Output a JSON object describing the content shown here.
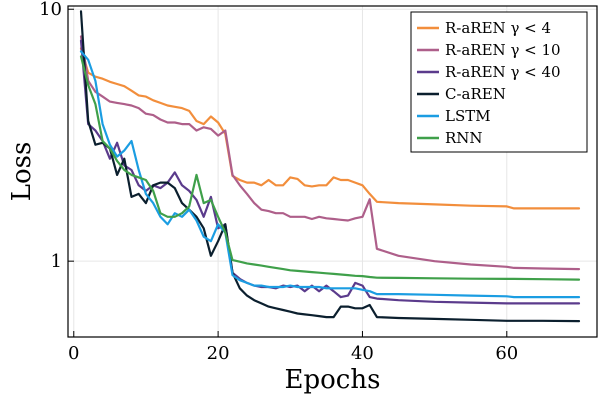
{
  "chart_data": {
    "type": "line",
    "title": "",
    "xlabel": "Epochs",
    "ylabel": "Loss",
    "xscale": "linear",
    "yscale": "log10",
    "xlim": [
      -0.8,
      72.5
    ],
    "ylim": [
      0.5,
      10.3
    ],
    "xticks": [
      0,
      20,
      40,
      60
    ],
    "xtick_labels": [
      "0",
      "20",
      "40",
      "60"
    ],
    "yticks": [
      1,
      10
    ],
    "ytick_labels": [
      "1",
      "10"
    ],
    "grid": true,
    "legend_position": "top-right",
    "series": [
      {
        "name": "R-aREN γ < 4",
        "color": "#f28e3c",
        "x": [
          1,
          2,
          3,
          4,
          5,
          6,
          7,
          8,
          9,
          10,
          11,
          12,
          13,
          14,
          15,
          16,
          17,
          18,
          19,
          20,
          21,
          22,
          23,
          24,
          25,
          26,
          27,
          28,
          29,
          30,
          31,
          32,
          33,
          34,
          35,
          36,
          37,
          38,
          39,
          40,
          41,
          42,
          45,
          50,
          55,
          60,
          61,
          65,
          70
        ],
        "y": [
          7.0,
          5.6,
          5.4,
          5.3,
          5.15,
          5.05,
          4.95,
          4.75,
          4.55,
          4.5,
          4.35,
          4.25,
          4.15,
          4.1,
          4.05,
          3.95,
          3.6,
          3.5,
          3.75,
          3.55,
          3.2,
          2.18,
          2.1,
          2.05,
          2.05,
          2.0,
          2.1,
          2.0,
          2.0,
          2.15,
          2.12,
          2.0,
          1.98,
          2.0,
          2.0,
          2.15,
          2.1,
          2.1,
          2.05,
          2.0,
          1.85,
          1.72,
          1.7,
          1.68,
          1.66,
          1.65,
          1.62,
          1.62,
          1.62
        ]
      },
      {
        "name": "R-aREN γ < 10",
        "color": "#ae5f8a",
        "x": [
          1,
          2,
          3,
          4,
          5,
          6,
          7,
          8,
          9,
          10,
          11,
          12,
          13,
          14,
          15,
          16,
          17,
          18,
          19,
          20,
          21,
          22,
          23,
          24,
          25,
          26,
          27,
          28,
          29,
          30,
          31,
          32,
          33,
          34,
          35,
          36,
          37,
          38,
          39,
          40,
          41,
          42,
          45,
          50,
          55,
          60,
          61,
          65,
          70
        ],
        "y": [
          7.8,
          5.2,
          4.7,
          4.5,
          4.3,
          4.25,
          4.2,
          4.15,
          4.05,
          3.85,
          3.8,
          3.65,
          3.55,
          3.55,
          3.5,
          3.5,
          3.3,
          3.4,
          3.35,
          3.15,
          3.3,
          2.2,
          2.0,
          1.85,
          1.7,
          1.6,
          1.58,
          1.55,
          1.55,
          1.5,
          1.5,
          1.5,
          1.47,
          1.5,
          1.48,
          1.47,
          1.46,
          1.45,
          1.48,
          1.5,
          1.76,
          1.12,
          1.05,
          1.0,
          0.97,
          0.95,
          0.94,
          0.935,
          0.93
        ]
      },
      {
        "name": "R-aREN γ < 40",
        "color": "#5b3b8c",
        "x": [
          1,
          2,
          3,
          4,
          5,
          6,
          7,
          8,
          9,
          10,
          11,
          12,
          13,
          14,
          15,
          16,
          17,
          18,
          19,
          20,
          21,
          22,
          23,
          24,
          25,
          26,
          27,
          28,
          29,
          30,
          31,
          32,
          33,
          34,
          35,
          36,
          37,
          38,
          39,
          40,
          41,
          42,
          45,
          50,
          55,
          60,
          61,
          65,
          70
        ],
        "y": [
          7.5,
          3.5,
          3.3,
          3.0,
          2.55,
          2.95,
          2.4,
          2.3,
          2.0,
          1.9,
          2.0,
          1.95,
          2.05,
          2.25,
          2.0,
          1.9,
          1.75,
          1.5,
          1.8,
          1.35,
          1.4,
          0.9,
          0.85,
          0.82,
          0.8,
          0.79,
          0.79,
          0.78,
          0.8,
          0.79,
          0.8,
          0.76,
          0.8,
          0.76,
          0.8,
          0.76,
          0.72,
          0.73,
          0.82,
          0.8,
          0.72,
          0.71,
          0.7,
          0.69,
          0.685,
          0.68,
          0.68,
          0.68,
          0.68
        ]
      },
      {
        "name": "C-aREN",
        "color": "#0b1f2e",
        "x": [
          1,
          2,
          3,
          4,
          5,
          6,
          7,
          8,
          9,
          10,
          11,
          12,
          13,
          14,
          15,
          16,
          17,
          18,
          19,
          20,
          21,
          22,
          23,
          24,
          25,
          26,
          27,
          28,
          29,
          30,
          31,
          32,
          33,
          34,
          35,
          36,
          37,
          38,
          39,
          40,
          41,
          42,
          45,
          50,
          55,
          60,
          61,
          65,
          70
        ],
        "y": [
          9.8,
          3.6,
          2.9,
          2.95,
          2.8,
          2.2,
          2.55,
          1.8,
          1.85,
          1.7,
          2.0,
          2.05,
          2.05,
          1.95,
          1.7,
          1.6,
          1.5,
          1.35,
          1.05,
          1.2,
          1.4,
          0.9,
          0.78,
          0.73,
          0.7,
          0.68,
          0.66,
          0.65,
          0.64,
          0.63,
          0.62,
          0.615,
          0.61,
          0.605,
          0.6,
          0.6,
          0.66,
          0.66,
          0.65,
          0.65,
          0.67,
          0.6,
          0.595,
          0.59,
          0.585,
          0.58,
          0.58,
          0.58,
          0.578
        ]
      },
      {
        "name": "LSTM",
        "color": "#1b9de2",
        "x": [
          1,
          2,
          3,
          4,
          5,
          6,
          7,
          8,
          9,
          10,
          11,
          12,
          13,
          14,
          15,
          16,
          17,
          18,
          19,
          20,
          21,
          22,
          23,
          24,
          25,
          26,
          27,
          28,
          29,
          30,
          31,
          32,
          33,
          34,
          35,
          36,
          37,
          38,
          39,
          40,
          41,
          42,
          45,
          50,
          55,
          60,
          61,
          65,
          70
        ],
        "y": [
          6.8,
          6.3,
          5.2,
          3.5,
          2.9,
          2.6,
          2.75,
          3.0,
          2.3,
          1.85,
          1.7,
          1.5,
          1.4,
          1.55,
          1.5,
          1.6,
          1.45,
          1.25,
          1.2,
          1.4,
          1.3,
          0.88,
          0.84,
          0.82,
          0.8,
          0.8,
          0.79,
          0.79,
          0.79,
          0.8,
          0.79,
          0.79,
          0.79,
          0.79,
          0.78,
          0.78,
          0.78,
          0.78,
          0.78,
          0.77,
          0.76,
          0.74,
          0.74,
          0.735,
          0.73,
          0.725,
          0.72,
          0.72,
          0.72
        ]
      },
      {
        "name": "RNN",
        "color": "#3fa04a",
        "x": [
          1,
          2,
          3,
          4,
          5,
          6,
          7,
          8,
          9,
          10,
          11,
          12,
          13,
          14,
          15,
          16,
          17,
          18,
          19,
          20,
          21,
          22,
          23,
          24,
          25,
          26,
          27,
          28,
          29,
          30,
          31,
          32,
          33,
          34,
          35,
          36,
          37,
          38,
          39,
          40,
          41,
          42,
          45,
          50,
          55,
          60,
          61,
          65,
          70
        ],
        "y": [
          6.5,
          5.0,
          4.2,
          3.0,
          2.8,
          2.5,
          2.3,
          2.2,
          2.15,
          2.1,
          1.9,
          1.55,
          1.5,
          1.5,
          1.55,
          1.65,
          2.2,
          1.7,
          1.75,
          1.5,
          1.3,
          1.01,
          0.995,
          0.98,
          0.97,
          0.96,
          0.95,
          0.94,
          0.93,
          0.92,
          0.915,
          0.91,
          0.905,
          0.9,
          0.895,
          0.89,
          0.885,
          0.88,
          0.875,
          0.872,
          0.865,
          0.86,
          0.858,
          0.855,
          0.852,
          0.85,
          0.85,
          0.848,
          0.845
        ]
      }
    ]
  }
}
